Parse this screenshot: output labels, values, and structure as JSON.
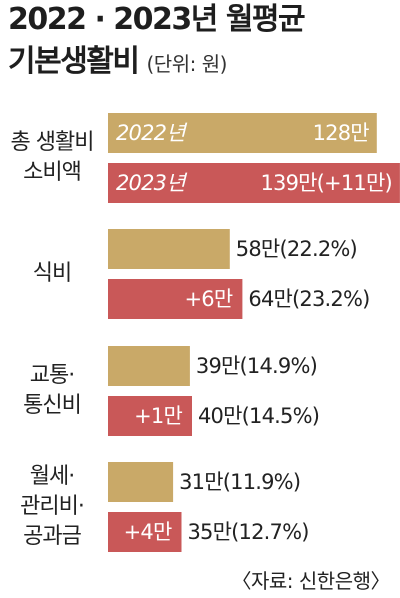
{
  "title": {
    "line1": "2022 · 2023년 월평균",
    "line2": "기본생활비",
    "unit": "(단위: 원)"
  },
  "source": "〈자료: 신한은행〉",
  "colors": {
    "y2022": "#c9a968",
    "y2023": "#c95858",
    "text_dark": "#222222",
    "text_light": "#ffffff"
  },
  "chart_data": {
    "type": "bar",
    "orientation": "horizontal",
    "unit": "만 원",
    "categories": [
      "총 생활비\n소비액",
      "식비",
      "교통·\n통신비",
      "월세·\n관리비·\n공과금"
    ],
    "series": [
      {
        "name": "2022년",
        "values": [
          128,
          58,
          39,
          31
        ],
        "labels": [
          "128만",
          "58만(22.2%)",
          "39만(14.9%)",
          "31만(11.9%)"
        ],
        "changes": [
          "",
          "",
          "",
          ""
        ]
      },
      {
        "name": "2023년",
        "values": [
          139,
          64,
          40,
          35
        ],
        "labels": [
          "139만(+11만)",
          "64만(23.2%)",
          "40만(14.5%)",
          "35만(12.7%)"
        ],
        "changes": [
          "",
          "+6만",
          "+1만",
          "+4만"
        ]
      }
    ]
  }
}
